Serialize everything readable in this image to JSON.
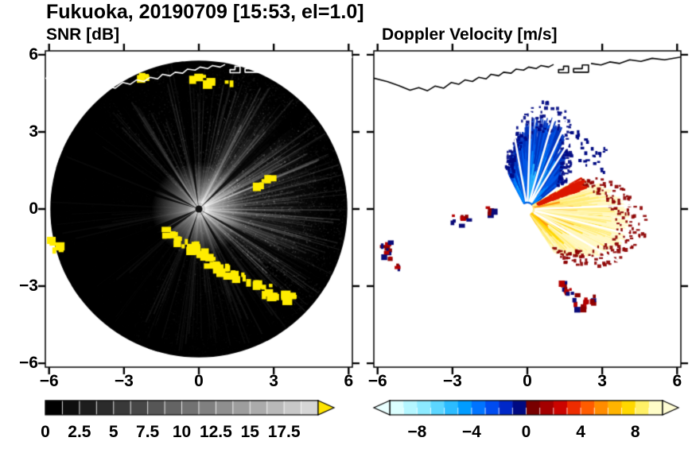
{
  "header": {
    "title": "Fukuoka, 20190709 [15:53, el=1.0]"
  },
  "panels": {
    "snr": {
      "title": "SNR [dB]"
    },
    "velocity": {
      "title": "Doppler Velocity [m/s]"
    }
  },
  "axes": {
    "xlim": [
      -6.15,
      6.15
    ],
    "ylim": [
      -6.15,
      6.15
    ],
    "xticks": [
      -6,
      -3,
      0,
      3,
      6
    ],
    "xtick_labels": [
      "−6",
      "−3",
      "0",
      "3",
      "6"
    ],
    "yticks": [
      -6,
      -3,
      0,
      3,
      6
    ],
    "ytick_labels": [
      "−6",
      "−3",
      "0",
      "3",
      "6"
    ]
  },
  "colorbars": {
    "snr": {
      "min": 0,
      "max": 20,
      "segments": 16,
      "tick_values": [
        0,
        2.5,
        5,
        7.5,
        10,
        12.5,
        15,
        17.5
      ],
      "tick_labels": [
        "0",
        "2.5",
        "5",
        "7.5",
        "10",
        "12.5",
        "15",
        "17.5"
      ],
      "start_color": "#000000",
      "end_color": "#d6d6d6",
      "arrow_color": "#ffe400"
    },
    "velocity": {
      "min": -10,
      "max": 10,
      "tick_values": [
        -8,
        -4,
        0,
        4,
        8
      ],
      "tick_labels": [
        "−8",
        "−4",
        "0",
        "4",
        "8"
      ],
      "colors": [
        "#dcffff",
        "#b4f6ff",
        "#8ceaff",
        "#5cd6ff",
        "#2cbcff",
        "#009cff",
        "#0074ff",
        "#004cf0",
        "#0028c8",
        "#000a82",
        "#780000",
        "#a40000",
        "#cc0400",
        "#ee2c00",
        "#ff5c00",
        "#ff8c00",
        "#ffb400",
        "#ffd800",
        "#fff066",
        "#fffdc8"
      ],
      "left_arrow_color": "#eaffff",
      "right_arrow_color": "#fffdd4"
    }
  },
  "chart_data": {
    "type": "heatmap",
    "title": "Fukuoka, 20190709 [15:53, el=1.0]",
    "site": "Fukuoka",
    "date": "20190709",
    "time": "15:53",
    "elevation_deg": 1.0,
    "panels": [
      {
        "title": "SNR [dB]",
        "quantity": "signal-to-noise ratio",
        "units": "dB",
        "xlim": [
          -6,
          6
        ],
        "ylim": [
          -6,
          6
        ],
        "scale_range": [
          0,
          20
        ],
        "scale_ticks": [
          0,
          2.5,
          5,
          7.5,
          10,
          12.5,
          15,
          17.5
        ],
        "summary": "Radar PPI scan: dark disk of radius ~6 with radial bright streaks strongest toward the east and around the radar at the origin; yellow high-SNR ground clutter along a coastline arc running southeast from the center and at the western edge; white coastline drawn along the top."
      },
      {
        "title": "Doppler Velocity [m/s]",
        "quantity": "radial Doppler velocity",
        "units": "m/s",
        "xlim": [
          -6,
          6
        ],
        "ylim": [
          -6,
          6
        ],
        "scale_range": [
          -10,
          10
        ],
        "scale_ticks": [
          -8,
          -4,
          0,
          4,
          8
        ],
        "summary": "Negative (blue, toward radar) velocities in a fan to the north-northeast up to ~4; positive (orange-yellow, away) velocities in a broad fan east-southeast up to ~4; scattered dark-red and navy echoes along the southern clutter line, near the western edge and northeast; white data gap at the origin; black coastline along the top."
      }
    ],
    "scene": {
      "disk_radius": 5.95,
      "dark_ray_angles": [
        [
          44,
          2.5
        ],
        [
          98,
          2
        ],
        [
          126,
          2.5
        ],
        [
          153,
          3
        ],
        [
          162,
          2
        ],
        [
          205,
          4
        ],
        [
          214,
          3
        ],
        [
          252,
          2
        ],
        [
          300,
          2.5
        ],
        [
          330,
          2
        ]
      ],
      "coast": {
        "main": [
          [
            -6.2,
            5.1
          ],
          [
            -5.6,
            4.95
          ],
          [
            -5.15,
            4.8
          ],
          [
            -4.7,
            4.62
          ],
          [
            -4.35,
            4.72
          ],
          [
            -4.0,
            4.6
          ],
          [
            -3.7,
            4.78
          ],
          [
            -3.35,
            4.7
          ],
          [
            -3.05,
            4.92
          ],
          [
            -2.75,
            4.85
          ],
          [
            -2.5,
            5.02
          ],
          [
            -2.2,
            4.96
          ],
          [
            -1.95,
            5.12
          ],
          [
            -1.65,
            5.06
          ],
          [
            -1.45,
            5.24
          ],
          [
            -1.15,
            5.18
          ],
          [
            -0.95,
            5.32
          ],
          [
            -0.65,
            5.28
          ],
          [
            -0.45,
            5.44
          ],
          [
            -0.15,
            5.4
          ],
          [
            0.05,
            5.52
          ],
          [
            0.35,
            5.46
          ],
          [
            0.55,
            5.58
          ],
          [
            0.85,
            5.52
          ],
          [
            1.05,
            5.62
          ]
        ],
        "islands": [
          [
            [
              1.25,
              5.3
            ],
            [
              1.65,
              5.3
            ],
            [
              1.65,
              5.55
            ],
            [
              1.45,
              5.55
            ],
            [
              1.45,
              5.42
            ],
            [
              1.25,
              5.42
            ]
          ],
          [
            [
              1.85,
              5.32
            ],
            [
              2.45,
              5.32
            ],
            [
              2.45,
              5.6
            ],
            [
              2.2,
              5.6
            ],
            [
              2.2,
              5.46
            ],
            [
              1.85,
              5.46
            ]
          ]
        ],
        "tail": [
          [
            2.55,
            5.66
          ],
          [
            2.95,
            5.6
          ],
          [
            3.3,
            5.72
          ],
          [
            3.7,
            5.66
          ],
          [
            4.1,
            5.8
          ],
          [
            4.55,
            5.74
          ],
          [
            5.0,
            5.86
          ],
          [
            5.5,
            5.8
          ],
          [
            6.2,
            5.92
          ]
        ]
      },
      "clutter_points": [
        [
          -5.9,
          -1.15
        ],
        [
          -5.8,
          -1.5
        ],
        [
          -1.35,
          -0.8
        ],
        [
          -1.1,
          -1.0
        ],
        [
          -0.85,
          -1.15
        ],
        [
          -0.6,
          -1.3
        ],
        [
          -0.45,
          -1.5
        ],
        [
          -0.25,
          -1.35
        ],
        [
          -0.1,
          -1.6
        ],
        [
          0.1,
          -1.8
        ],
        [
          0.35,
          -1.95
        ],
        [
          0.6,
          -2.1
        ],
        [
          0.85,
          -2.2
        ],
        [
          1.1,
          -2.35
        ],
        [
          1.4,
          -2.5
        ],
        [
          1.7,
          -2.6
        ],
        [
          2.0,
          -2.72
        ],
        [
          2.3,
          -2.9
        ],
        [
          2.6,
          -3.0
        ],
        [
          2.9,
          -3.08
        ],
        [
          3.2,
          -3.2
        ],
        [
          3.5,
          -3.3
        ],
        [
          2.3,
          1.05
        ],
        [
          2.55,
          1.2
        ],
        [
          -0.2,
          5.3
        ],
        [
          0.3,
          5.15
        ],
        [
          1.15,
          4.9
        ],
        [
          -2.3,
          5.15
        ]
      ],
      "clutter_color": "#ffec00",
      "velocity": {
        "blue_fan": {
          "a0": 38,
          "a1": 118,
          "center": 78,
          "width": 30,
          "r_base": 1.3,
          "r_peak": 2.6,
          "colors": [
            "#aaeeff",
            "#66d8ff",
            "#28b6ff",
            "#0088ff",
            "#0058e8",
            "#0034bc"
          ],
          "streaks": 1100,
          "speck_color": "#000a82"
        },
        "orange_fan": {
          "a0": -58,
          "a1": 30,
          "center": -10,
          "width": 40,
          "r_base": 1.5,
          "r_peak": 2.7,
          "colors": [
            "#ff6400",
            "#ff8c00",
            "#ffb400",
            "#ffd800",
            "#ffec78",
            "#fff8c4"
          ],
          "streaks": 1500,
          "edge_color": "#dc1800",
          "speck_color": "#8c0000"
        },
        "blue_gaps": [
          58,
          66,
          74,
          88,
          100
        ],
        "orange_gaps": [
          2,
          -14,
          -30
        ],
        "ne_specks": [
          [
            2.15,
            1.85
          ],
          [
            2.5,
            2.15
          ],
          [
            2.85,
            1.7
          ],
          [
            2.35,
            2.55
          ],
          [
            1.85,
            2.85
          ],
          [
            3.0,
            2.3
          ]
        ],
        "bottom_blobs": [
          [
            1.3,
            -2.95
          ],
          [
            1.6,
            -3.2
          ],
          [
            1.95,
            -3.45
          ],
          [
            2.3,
            -3.6
          ],
          [
            2.05,
            -3.75
          ],
          [
            2.55,
            -3.5
          ]
        ],
        "west_blobs": [
          [
            -5.75,
            -1.4
          ],
          [
            -5.7,
            -1.7
          ],
          [
            -5.3,
            -2.15
          ]
        ],
        "mid_blobs": [
          [
            -2.95,
            -0.3
          ],
          [
            -2.6,
            -0.4
          ],
          [
            -1.55,
            0.05
          ]
        ],
        "blob_colors": [
          "#b40000",
          "#8c0000",
          "#0a0a78"
        ],
        "hole_radius_px": 7
      }
    }
  }
}
